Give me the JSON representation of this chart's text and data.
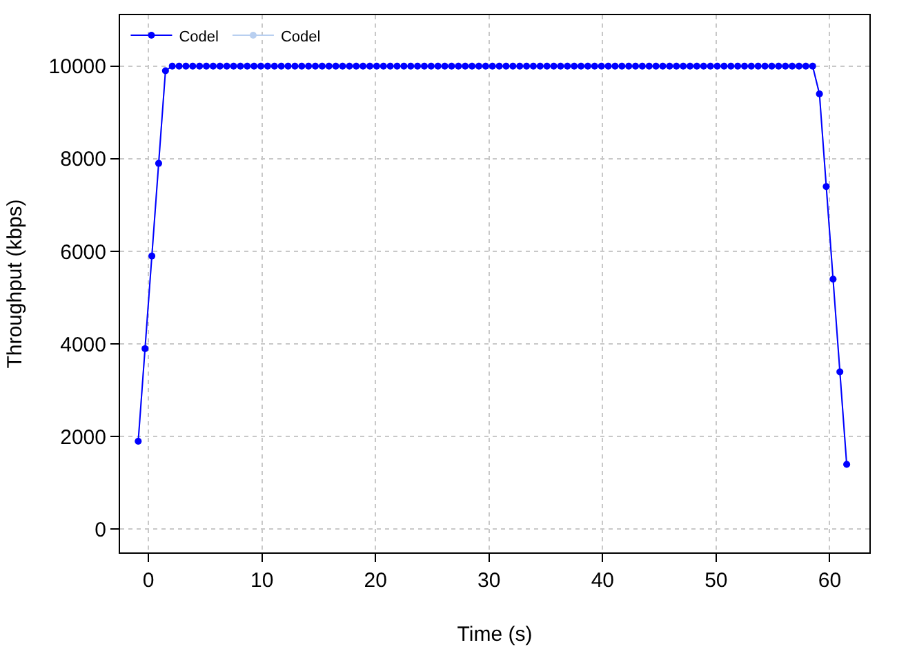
{
  "chart_data": {
    "type": "line",
    "xlabel": "Time (s)",
    "ylabel": "Throughput (kbps)",
    "x": [
      -0.9,
      -0.3,
      0.3,
      0.9,
      1.5,
      2.1,
      2.7,
      3.3,
      3.9,
      4.5,
      5.1,
      5.7,
      6.3,
      6.9,
      7.5,
      8.1,
      8.7,
      9.3,
      9.9,
      10.5,
      11.1,
      11.7,
      12.3,
      12.9,
      13.5,
      14.1,
      14.7,
      15.3,
      15.9,
      16.5,
      17.1,
      17.7,
      18.3,
      18.9,
      19.5,
      20.1,
      20.7,
      21.3,
      21.9,
      22.5,
      23.1,
      23.7,
      24.3,
      24.9,
      25.5,
      26.1,
      26.7,
      27.3,
      27.9,
      28.5,
      29.1,
      29.7,
      30.3,
      30.9,
      31.5,
      32.1,
      32.7,
      33.3,
      33.9,
      34.5,
      35.1,
      35.7,
      36.3,
      36.9,
      37.5,
      38.1,
      38.7,
      39.3,
      39.9,
      40.5,
      41.1,
      41.7,
      42.3,
      42.9,
      43.5,
      44.1,
      44.7,
      45.3,
      45.9,
      46.5,
      47.1,
      47.7,
      48.3,
      48.9,
      49.5,
      50.1,
      50.7,
      51.3,
      51.9,
      52.5,
      53.1,
      53.7,
      54.3,
      54.9,
      55.5,
      56.1,
      56.7,
      57.3,
      57.9,
      58.5,
      59.1,
      59.7,
      60.3,
      60.9,
      61.5
    ],
    "series": [
      {
        "name": "Codel",
        "color": "#0000ff",
        "values": [
          1900,
          3900,
          5900,
          7900,
          9900,
          10000,
          10000,
          10000,
          10000,
          10000,
          10000,
          10000,
          10000,
          10000,
          10000,
          10000,
          10000,
          10000,
          10000,
          10000,
          10000,
          10000,
          10000,
          10000,
          10000,
          10000,
          10000,
          10000,
          10000,
          10000,
          10000,
          10000,
          10000,
          10000,
          10000,
          10000,
          10000,
          10000,
          10000,
          10000,
          10000,
          10000,
          10000,
          10000,
          10000,
          10000,
          10000,
          10000,
          10000,
          10000,
          10000,
          10000,
          10000,
          10000,
          10000,
          10000,
          10000,
          10000,
          10000,
          10000,
          10000,
          10000,
          10000,
          10000,
          10000,
          10000,
          10000,
          10000,
          10000,
          10000,
          10000,
          10000,
          10000,
          10000,
          10000,
          10000,
          10000,
          10000,
          10000,
          10000,
          10000,
          10000,
          10000,
          10000,
          10000,
          10000,
          10000,
          10000,
          10000,
          10000,
          10000,
          10000,
          10000,
          10000,
          10000,
          10000,
          10000,
          10000,
          10000,
          10000,
          9400,
          7400,
          5400,
          3400,
          1400
        ]
      },
      {
        "name": "Codel",
        "color": "#b8cff0",
        "values": [
          1900,
          3900,
          5900,
          7900,
          9900,
          10000,
          10000,
          10000,
          10000,
          10000,
          10000,
          10000,
          10000,
          10000,
          10000,
          10000,
          10000,
          10000,
          10000,
          10000,
          10000,
          10000,
          10000,
          10000,
          10000,
          10000,
          10000,
          10000,
          10000,
          10000,
          10000,
          10000,
          10000,
          10000,
          10000,
          10000,
          10000,
          10000,
          10000,
          10000,
          10000,
          10000,
          10000,
          10000,
          10000,
          10000,
          10000,
          10000,
          10000,
          10000,
          10000,
          10000,
          10000,
          10000,
          10000,
          10000,
          10000,
          10000,
          10000,
          10000,
          10000,
          10000,
          10000,
          10000,
          10000,
          10000,
          10000,
          10000,
          10000,
          10000,
          10000,
          10000,
          10000,
          10000,
          10000,
          10000,
          10000,
          10000,
          10000,
          10000,
          10000,
          10000,
          10000,
          10000,
          10000,
          10000,
          10000,
          10000,
          10000,
          10000,
          10000,
          10000,
          10000,
          10000,
          10000,
          10000,
          10000,
          10000,
          10000,
          10000,
          9400,
          7400,
          5400,
          3400,
          1400
        ]
      }
    ],
    "xlim": [
      -2.5,
      63.5
    ],
    "xticks": [
      0,
      10,
      20,
      30,
      40,
      50,
      60
    ],
    "ylim": [
      -500,
      11100
    ],
    "yticks": [
      0,
      2000,
      4000,
      6000,
      8000,
      10000
    ],
    "grid": true,
    "legend": "top left",
    "marker": "circle",
    "line_style": "solid"
  }
}
